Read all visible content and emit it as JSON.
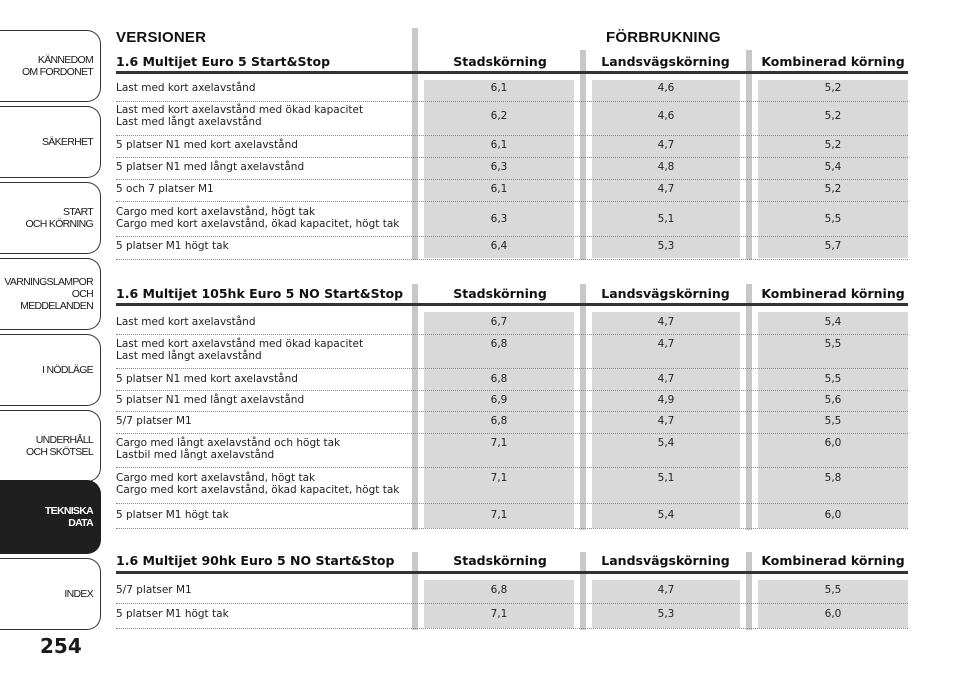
{
  "sidebar": {
    "tabs": [
      {
        "label": "KÄNNEDOM\nOM FORDONET",
        "active": false
      },
      {
        "label": "SÄKERHET",
        "active": false
      },
      {
        "label": "START\nOCH KÖRNING",
        "active": false
      },
      {
        "label": "VARNINGSLAMPOR\nOCH\nMEDDELANDEN",
        "active": false
      },
      {
        "label": "I NÖDLÄGE",
        "active": false
      },
      {
        "label": "UNDERHÅLL\nOCH SKÖTSEL",
        "active": false
      },
      {
        "label": "TEKNISKA\nDATA",
        "active": true
      },
      {
        "label": "INDEX",
        "active": false
      }
    ]
  },
  "page_number": "254",
  "header": {
    "versions_title": "VERSIONER",
    "consumption_title": "FÖRBRUKNING"
  },
  "colors": {
    "column_shade": "#d9d9d9",
    "active_tab": "#1f1f1f",
    "rule": "#333333"
  },
  "sections": [
    {
      "title": "1.6 Multijet Euro 5 Start&Stop",
      "columns": [
        "Stadskörning",
        "Landsvägskörning",
        "Kombinerad körning"
      ],
      "rows": [
        {
          "label": "Last med kort axelavstånd",
          "values": [
            "6,1",
            "4,6",
            "5,2"
          ]
        },
        {
          "label": "Last med kort axelavstånd med ökad kapacitet\nLast med långt axelavstånd",
          "values": [
            "6,2",
            "4,6",
            "5,2"
          ]
        },
        {
          "label": "5 platser N1 med kort axelavstånd",
          "values": [
            "6,1",
            "4,7",
            "5,2"
          ]
        },
        {
          "label": "5 platser N1 med långt axelavstånd",
          "values": [
            "6,3",
            "4,8",
            "5,4"
          ]
        },
        {
          "label": "5 och 7 platser M1",
          "values": [
            "6,1",
            "4,7",
            "5,2"
          ]
        },
        {
          "label": "Cargo med kort axelavstånd, högt tak\nCargo med kort axelavstånd, ökad kapacitet, högt tak",
          "values": [
            "6,3",
            "5,1",
            "5,5"
          ]
        },
        {
          "label": "5 platser M1 högt tak",
          "values": [
            "6,4",
            "5,3",
            "5,7"
          ]
        }
      ]
    },
    {
      "title": "1.6 Multijet 105hk Euro 5 NO Start&Stop",
      "columns": [
        "Stadskörning",
        "Landsvägskörning",
        "Kombinerad körning"
      ],
      "rows": [
        {
          "label": "Last med kort axelavstånd",
          "values": [
            "6,7",
            "4,7",
            "5,4"
          ]
        },
        {
          "label": "Last med kort axelavstånd med ökad kapacitet\nLast med långt axelavstånd",
          "values": [
            "6,8",
            "4,7",
            "5,5"
          ]
        },
        {
          "label": "5 platser N1 med kort axelavstånd",
          "values": [
            "6,8",
            "4,7",
            "5,5"
          ]
        },
        {
          "label": "5 platser N1 med långt axelavstånd",
          "values": [
            "6,9",
            "4,9",
            "5,6"
          ]
        },
        {
          "label": "5/7 platser M1",
          "values": [
            "6,8",
            "4,7",
            "5,5"
          ]
        },
        {
          "label": "Cargo med långt axelavstånd och högt tak\nLastbil med långt axelavstånd",
          "values": [
            "7,1",
            "5,4",
            "6,0"
          ]
        },
        {
          "label": "Cargo med kort axelavstånd, högt tak\nCargo med kort axelavstånd, ökad kapacitet, högt tak",
          "values": [
            "7,1",
            "5,1",
            "5,8"
          ]
        },
        {
          "label": "5 platser M1 högt tak",
          "values": [
            "7,1",
            "5,4",
            "6,0"
          ]
        }
      ]
    },
    {
      "title": "1.6 Multijet 90hk Euro 5 NO Start&Stop",
      "columns": [
        "Stadskörning",
        "Landsvägskörning",
        "Kombinerad körning"
      ],
      "rows": [
        {
          "label": "5/7 platser M1",
          "values": [
            "6,8",
            "4,7",
            "5,5"
          ]
        },
        {
          "label": "5 platser M1 högt tak",
          "values": [
            "7,1",
            "5,3",
            "6,0"
          ]
        }
      ]
    }
  ]
}
